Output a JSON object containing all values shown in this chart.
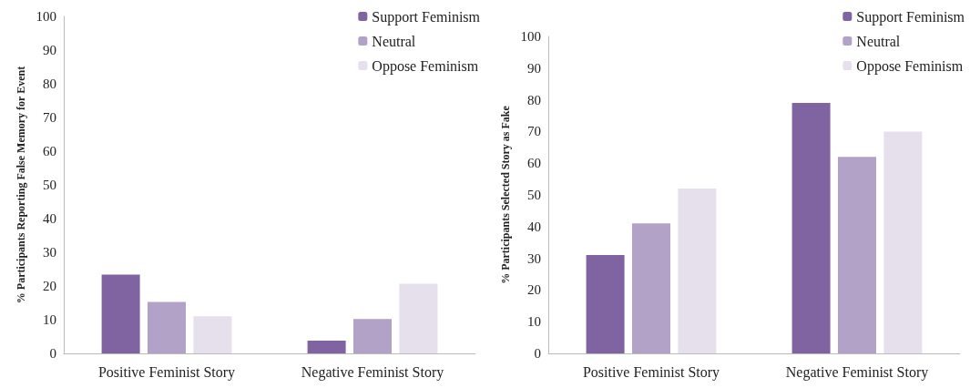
{
  "chart_data": [
    {
      "type": "bar",
      "ylabel": "% Participants Reporting False Memory for Event",
      "categories": [
        "Positive Feminist Story",
        "Negative Feminist Story"
      ],
      "series": [
        {
          "name": "Support Feminism",
          "color": "#8064a2",
          "values": [
            23.4,
            3.8
          ]
        },
        {
          "name": "Neutral",
          "color": "#b3a2c7",
          "values": [
            15.3,
            10.2
          ]
        },
        {
          "name": "Oppose Feminism",
          "color": "#e6e0ec",
          "values": [
            11,
            20.7
          ]
        }
      ],
      "ylim": [
        0,
        100
      ],
      "yticks": [
        0,
        10,
        20,
        30,
        40,
        50,
        60,
        70,
        80,
        90,
        100
      ],
      "grid": false,
      "legend": "top right"
    },
    {
      "type": "bar",
      "ylabel": "% Participants Selected Story as Fake",
      "categories": [
        "Positive Feminist Story",
        "Negative Feminist Story"
      ],
      "series": [
        {
          "name": "Support Feminism",
          "color": "#8064a2",
          "values": [
            31,
            79
          ]
        },
        {
          "name": "Neutral",
          "color": "#b3a2c7",
          "values": [
            41,
            62
          ]
        },
        {
          "name": "Oppose Feminism",
          "color": "#e6e0ec",
          "values": [
            52,
            70
          ]
        }
      ],
      "ylim": [
        0,
        100
      ],
      "yticks": [
        0,
        10,
        20,
        30,
        40,
        50,
        60,
        70,
        80,
        90,
        100
      ],
      "grid": false,
      "legend": "top right"
    }
  ]
}
